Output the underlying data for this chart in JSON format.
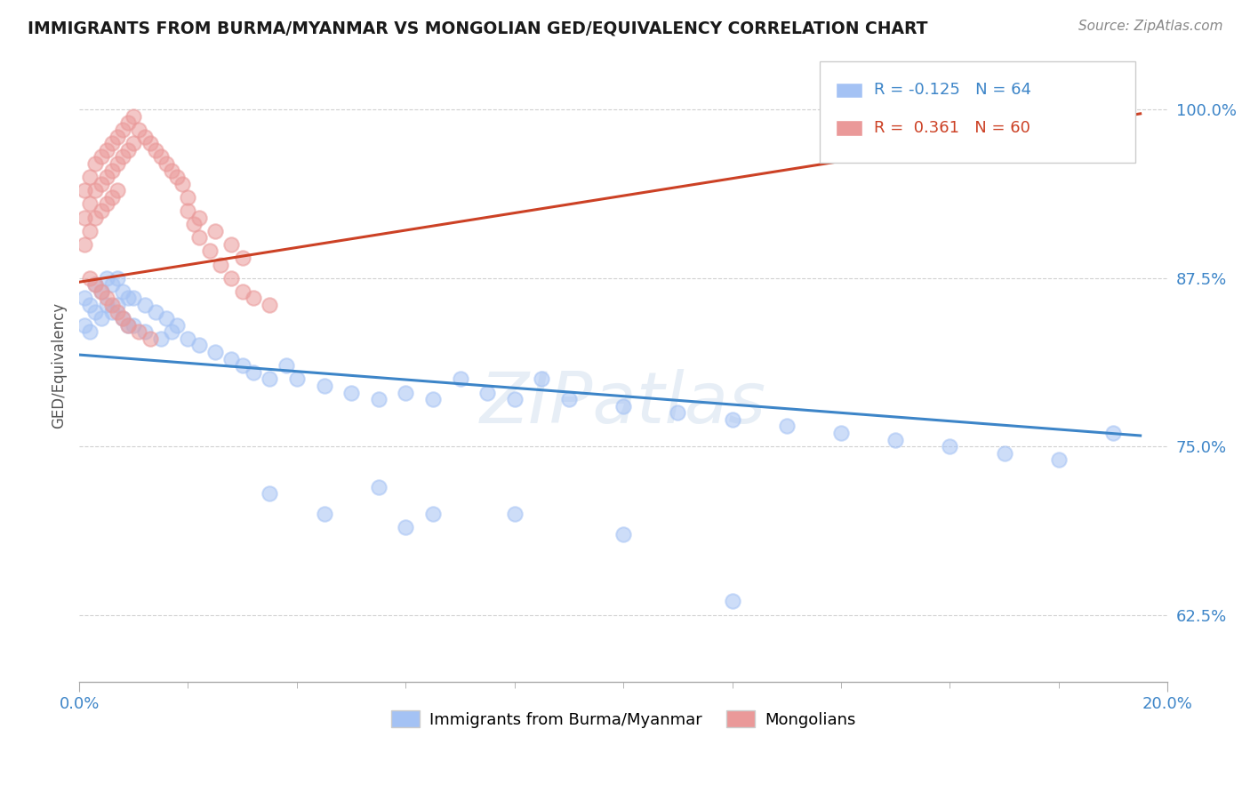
{
  "title": "IMMIGRANTS FROM BURMA/MYANMAR VS MONGOLIAN GED/EQUIVALENCY CORRELATION CHART",
  "source": "Source: ZipAtlas.com",
  "ylabel": "GED/Equivalency",
  "ytick_labels": [
    "62.5%",
    "75.0%",
    "87.5%",
    "100.0%"
  ],
  "ytick_values": [
    0.625,
    0.75,
    0.875,
    1.0
  ],
  "xlim": [
    0.0,
    0.2
  ],
  "ylim": [
    0.575,
    1.045
  ],
  "legend_blue_label": "Immigrants from Burma/Myanmar",
  "legend_pink_label": "Mongolians",
  "R_blue": -0.125,
  "N_blue": 64,
  "R_pink": 0.361,
  "N_pink": 60,
  "blue_color": "#a4c2f4",
  "pink_color": "#ea9999",
  "blue_line_color": "#3d85c8",
  "pink_line_color": "#cc4125",
  "watermark": "ZIPatlas",
  "blue_trend_x0": 0.0,
  "blue_trend_y0": 0.818,
  "blue_trend_x1": 0.195,
  "blue_trend_y1": 0.758,
  "pink_trend_x0": 0.0,
  "pink_trend_y0": 0.872,
  "pink_trend_x1": 0.195,
  "pink_trend_y1": 0.997,
  "blue_x": [
    0.001,
    0.001,
    0.002,
    0.002,
    0.003,
    0.003,
    0.004,
    0.004,
    0.005,
    0.005,
    0.006,
    0.006,
    0.007,
    0.007,
    0.008,
    0.008,
    0.009,
    0.009,
    0.01,
    0.01,
    0.012,
    0.012,
    0.014,
    0.015,
    0.016,
    0.017,
    0.018,
    0.02,
    0.022,
    0.025,
    0.028,
    0.03,
    0.032,
    0.035,
    0.038,
    0.04,
    0.045,
    0.05,
    0.055,
    0.06,
    0.065,
    0.07,
    0.075,
    0.08,
    0.085,
    0.09,
    0.1,
    0.11,
    0.12,
    0.13,
    0.14,
    0.15,
    0.16,
    0.17,
    0.18,
    0.19,
    0.06,
    0.08,
    0.1,
    0.12,
    0.035,
    0.045,
    0.055,
    0.065
  ],
  "blue_y": [
    0.86,
    0.84,
    0.855,
    0.835,
    0.87,
    0.85,
    0.865,
    0.845,
    0.875,
    0.855,
    0.87,
    0.85,
    0.875,
    0.855,
    0.865,
    0.845,
    0.86,
    0.84,
    0.86,
    0.84,
    0.855,
    0.835,
    0.85,
    0.83,
    0.845,
    0.835,
    0.84,
    0.83,
    0.825,
    0.82,
    0.815,
    0.81,
    0.805,
    0.8,
    0.81,
    0.8,
    0.795,
    0.79,
    0.785,
    0.79,
    0.785,
    0.8,
    0.79,
    0.785,
    0.8,
    0.785,
    0.78,
    0.775,
    0.77,
    0.765,
    0.76,
    0.755,
    0.75,
    0.745,
    0.74,
    0.76,
    0.69,
    0.7,
    0.685,
    0.635,
    0.715,
    0.7,
    0.72,
    0.7
  ],
  "pink_x": [
    0.001,
    0.001,
    0.001,
    0.002,
    0.002,
    0.002,
    0.003,
    0.003,
    0.003,
    0.004,
    0.004,
    0.004,
    0.005,
    0.005,
    0.005,
    0.006,
    0.006,
    0.006,
    0.007,
    0.007,
    0.007,
    0.008,
    0.008,
    0.009,
    0.009,
    0.01,
    0.01,
    0.011,
    0.012,
    0.013,
    0.014,
    0.015,
    0.016,
    0.017,
    0.018,
    0.019,
    0.02,
    0.021,
    0.022,
    0.024,
    0.026,
    0.028,
    0.03,
    0.032,
    0.035,
    0.02,
    0.022,
    0.025,
    0.028,
    0.03,
    0.002,
    0.003,
    0.004,
    0.005,
    0.006,
    0.007,
    0.008,
    0.009,
    0.011,
    0.013
  ],
  "pink_y": [
    0.94,
    0.92,
    0.9,
    0.95,
    0.93,
    0.91,
    0.96,
    0.94,
    0.92,
    0.965,
    0.945,
    0.925,
    0.97,
    0.95,
    0.93,
    0.975,
    0.955,
    0.935,
    0.98,
    0.96,
    0.94,
    0.985,
    0.965,
    0.99,
    0.97,
    0.995,
    0.975,
    0.985,
    0.98,
    0.975,
    0.97,
    0.965,
    0.96,
    0.955,
    0.95,
    0.945,
    0.925,
    0.915,
    0.905,
    0.895,
    0.885,
    0.875,
    0.865,
    0.86,
    0.855,
    0.935,
    0.92,
    0.91,
    0.9,
    0.89,
    0.875,
    0.87,
    0.865,
    0.86,
    0.855,
    0.85,
    0.845,
    0.84,
    0.835,
    0.83
  ]
}
